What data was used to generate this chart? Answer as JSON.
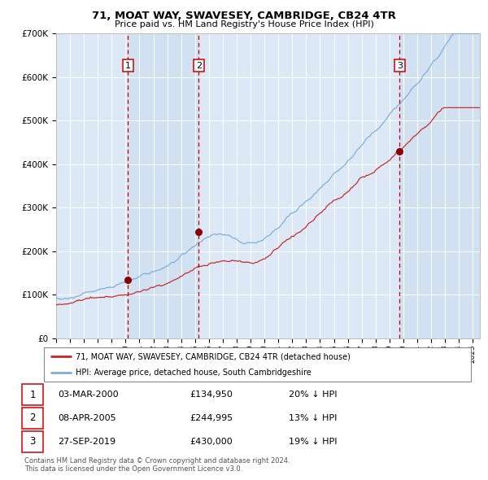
{
  "title": "71, MOAT WAY, SWAVESEY, CAMBRIDGE, CB24 4TR",
  "subtitle": "Price paid vs. HM Land Registry's House Price Index (HPI)",
  "background_color": "#ffffff",
  "plot_bg_color": "#dce8f5",
  "grid_color": "#ffffff",
  "hpi_line_color": "#7aaddb",
  "price_line_color": "#cc2222",
  "sale_marker_color": "#8b0000",
  "vline_color": "#cc0000",
  "sales": [
    {
      "date_num": 2000.17,
      "price": 134950,
      "label": "1",
      "date_str": "03-MAR-2000",
      "pct": "20% ↓ HPI"
    },
    {
      "date_num": 2005.27,
      "price": 244995,
      "label": "2",
      "date_str": "08-APR-2005",
      "pct": "13% ↓ HPI"
    },
    {
      "date_num": 2019.73,
      "price": 430000,
      "label": "3",
      "date_str": "27-SEP-2019",
      "pct": "19% ↓ HPI"
    }
  ],
  "legend_property": "71, MOAT WAY, SWAVESEY, CAMBRIDGE, CB24 4TR (detached house)",
  "legend_hpi": "HPI: Average price, detached house, South Cambridgeshire",
  "footnote1": "Contains HM Land Registry data © Crown copyright and database right 2024.",
  "footnote2": "This data is licensed under the Open Government Licence v3.0.",
  "xmin": 1995.0,
  "xmax": 2025.5,
  "ymin": 0,
  "ymax": 700000
}
